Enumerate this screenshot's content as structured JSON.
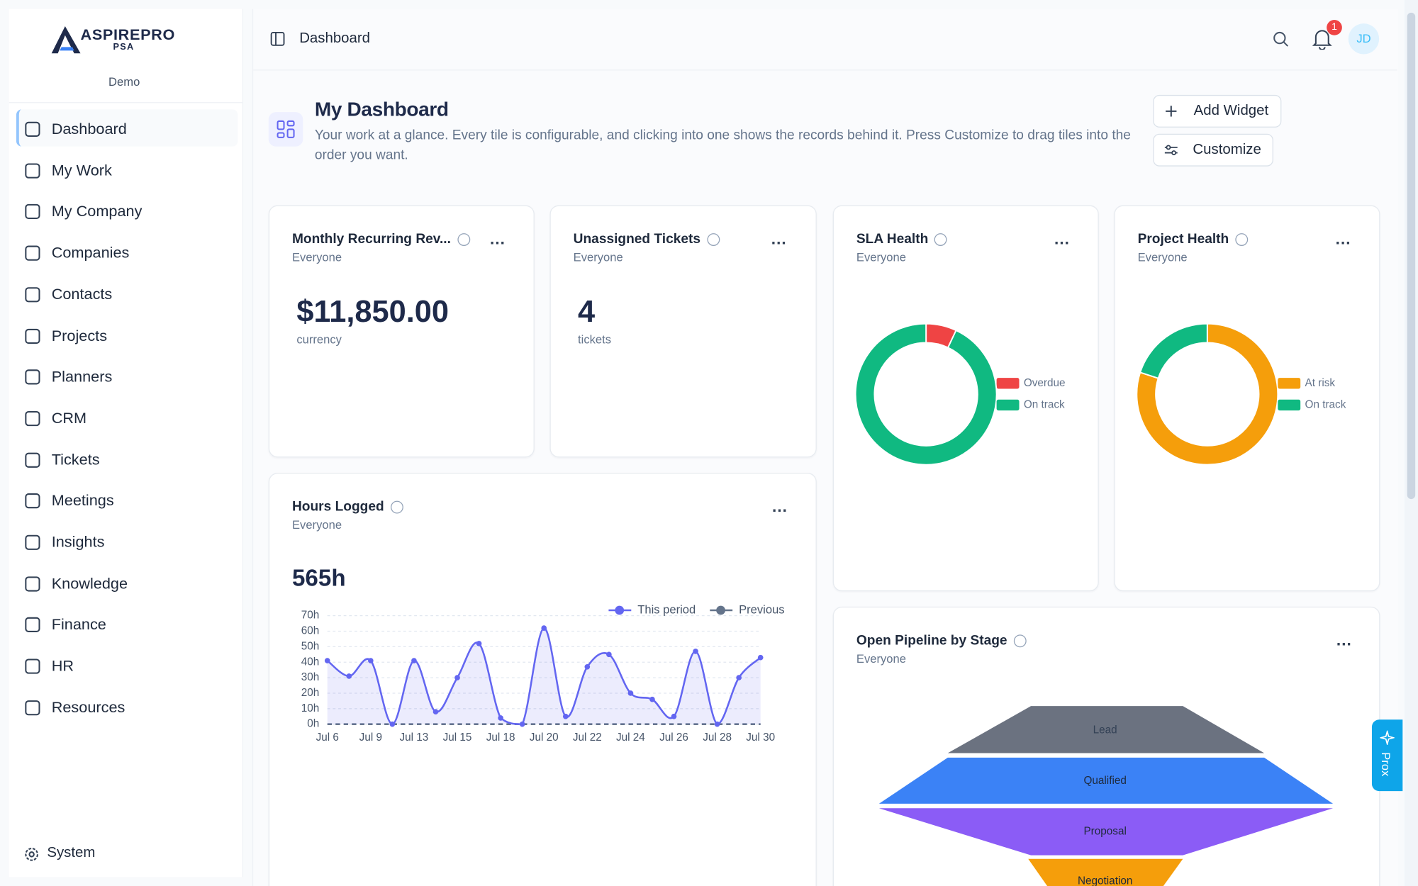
{
  "sidebar": {
    "brand": "ASPIREPRO",
    "brand_sub": "PSA",
    "workspace": "Demo",
    "nav": [
      "Dashboard",
      "My Work",
      "My Company",
      "Companies",
      "Contacts",
      "Projects",
      "Planners",
      "CRM",
      "Tickets",
      "Meetings",
      "Insights",
      "Knowledge",
      "Finance",
      "HR",
      "Resources"
    ],
    "footer": "System"
  },
  "header": {
    "breadcrumb": "Dashboard",
    "notifications": "1",
    "avatar": "JD"
  },
  "page": {
    "title": "My Dashboard",
    "description": "Your work at a glance. Every tile is configurable, and clicking into one shows the records behind it. Press Customize to drag tiles into the order you want.",
    "actions": [
      "Add Widget",
      "Customize"
    ]
  },
  "side_tab": "Prox",
  "widgets": [
    {
      "title": "Monthly Recurring Rev...",
      "scope": "Everyone",
      "value": "$11,850.00",
      "unit": "currency"
    },
    {
      "title": "Unassigned Tickets",
      "scope": "Everyone",
      "value": "4",
      "unit": "tickets"
    },
    {
      "title": "SLA Health",
      "scope": "Everyone",
      "chart_data": {
        "type": "donut",
        "categories": [
          "Overdue",
          "On track"
        ],
        "values": [
          7,
          93
        ],
        "colors": [
          "#ef4444",
          "#10b981"
        ]
      }
    },
    {
      "title": "Project Health",
      "scope": "Everyone",
      "chart_data": {
        "type": "donut",
        "categories": [
          "At risk",
          "On track"
        ],
        "values": [
          80,
          20
        ],
        "colors": [
          "#f59e0b",
          "#10b981"
        ]
      }
    },
    {
      "title": "Hours Logged",
      "scope": "Everyone",
      "total": "565h",
      "chart_data": {
        "type": "line",
        "categories": [
          "Jul 6",
          null,
          "Jul 9",
          null,
          "Jul 13",
          null,
          "Jul 15",
          null,
          "Jul 18",
          null,
          "Jul 20",
          null,
          "Jul 22",
          null,
          "Jul 24",
          null,
          "Jul 26",
          null,
          "Jul 28",
          null,
          "Jul 30"
        ],
        "series": [
          {
            "name": "This period",
            "color": "#6366f1",
            "area": true,
            "values": [
              41,
              31,
              41,
              0,
              41,
              8,
              30,
              52,
              4,
              0,
              62,
              5,
              37,
              45,
              20,
              16,
              5,
              47,
              0,
              30,
              43
            ]
          },
          {
            "name": "Previous",
            "color": "#64748b",
            "dash": true,
            "values": [
              0,
              0,
              0,
              0,
              0,
              0,
              0,
              0,
              0,
              0,
              0,
              0,
              0,
              0,
              0,
              0,
              0,
              0,
              0,
              0,
              0
            ]
          }
        ],
        "ylim": [
          0,
          70
        ],
        "yticks": [
          {
            "value": 0,
            "label": "0h"
          },
          {
            "value": 10,
            "label": "10h"
          },
          {
            "value": 20,
            "label": "20h"
          },
          {
            "value": 30,
            "label": "30h"
          },
          {
            "value": 40,
            "label": "40h"
          },
          {
            "value": 50,
            "label": "50h"
          },
          {
            "value": 60,
            "label": "60h"
          },
          {
            "value": 70,
            "label": "70h"
          }
        ],
        "grid": true
      }
    },
    {
      "title": "Open Pipeline by Stage",
      "scope": "Everyone",
      "chart_data": {
        "type": "funnel",
        "categories": [
          "Lead",
          "Qualified",
          "Proposal",
          "Negotiation"
        ],
        "colors": [
          "#6b7280",
          "#3b82f6",
          "#8b5cf6",
          "#f59e0b"
        ]
      }
    }
  ]
}
